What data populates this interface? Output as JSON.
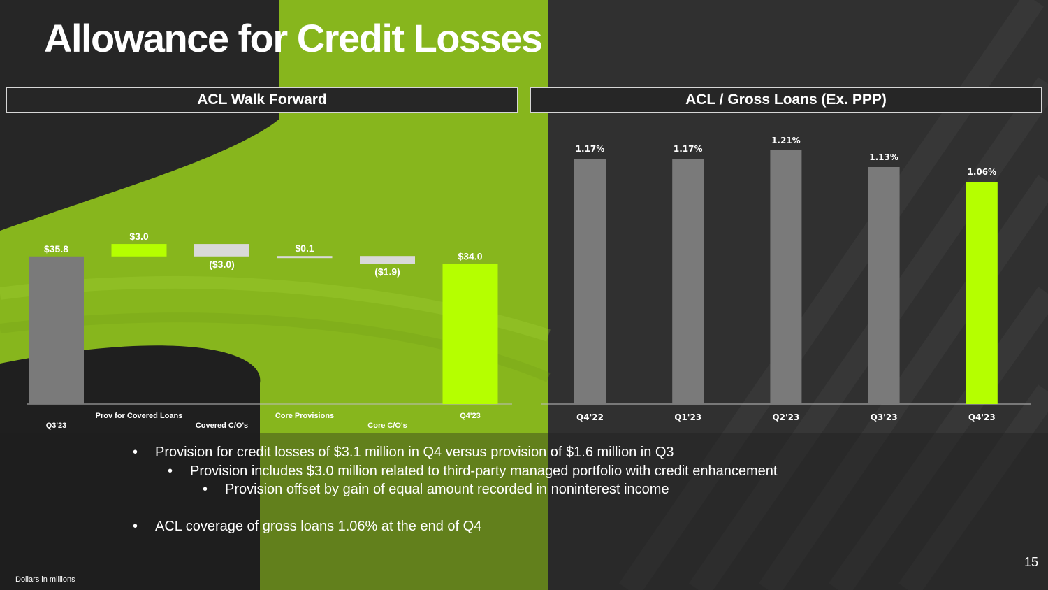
{
  "title": "Allowance for Credit Losses",
  "colors": {
    "accent": "#b5ff00",
    "bar_grey": "#7a7a7a",
    "bar_light": "#d9d9d9",
    "background": "#2b2b2b"
  },
  "panels": {
    "left_header": "ACL Walk Forward",
    "right_header": "ACL / Gross Loans (Ex. PPP)"
  },
  "chart_data": [
    {
      "type": "bar",
      "subtype": "waterfall",
      "title": "ACL Walk Forward",
      "categories": [
        "Q3'23",
        "Prov for Covered Loans",
        "Covered C/O's",
        "Core Provisions",
        "Core C/O's",
        "Q4'23"
      ],
      "values": [
        35.8,
        3.0,
        -3.0,
        0.1,
        -1.9,
        34.0
      ],
      "kinds": [
        "total",
        "increase",
        "decrease",
        "increase",
        "decrease",
        "total"
      ],
      "labels": [
        "$35.8",
        "$3.0",
        "($3.0)",
        "$0.1",
        "($1.9)",
        "$34.0"
      ],
      "units": "Dollars in millions"
    },
    {
      "type": "bar",
      "title": "ACL / Gross Loans (Ex. PPP)",
      "categories": [
        "Q4'22",
        "Q1'23",
        "Q2'23",
        "Q3'23",
        "Q4'23"
      ],
      "values": [
        1.17,
        1.17,
        1.21,
        1.13,
        1.06
      ],
      "labels": [
        "1.17%",
        "1.17%",
        "1.21%",
        "1.13%",
        "1.06%"
      ],
      "highlight_index": 4
    }
  ],
  "bullets": [
    {
      "level": 0,
      "text": "Provision for credit losses of $3.1 million in Q4 versus provision of $1.6 million in Q3"
    },
    {
      "level": 1,
      "text": "Provision includes $3.0 million related to third-party managed portfolio with credit enhancement"
    },
    {
      "level": 2,
      "text": "Provision offset by gain of equal amount recorded in noninterest income"
    },
    {
      "level": 0,
      "text": "ACL coverage of gross loans 1.06% at the end of Q4"
    }
  ],
  "page_number": "15",
  "footnote": "Dollars in millions"
}
